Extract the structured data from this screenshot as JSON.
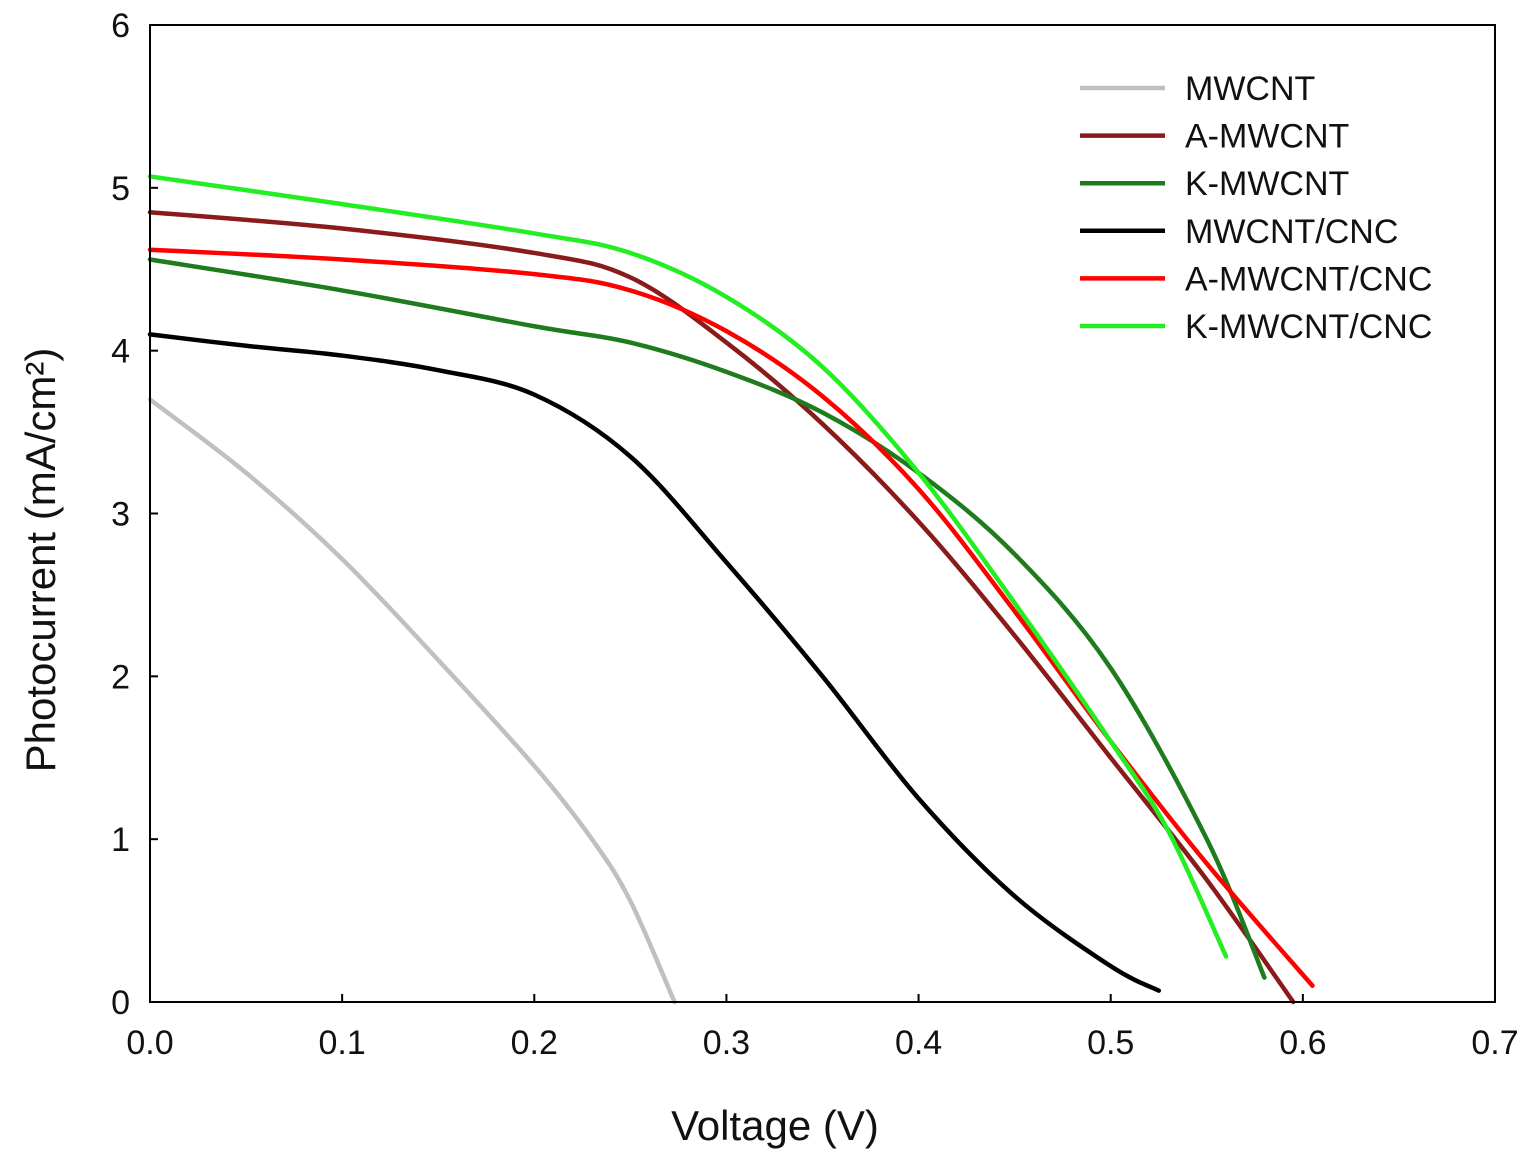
{
  "chart_data": {
    "type": "line",
    "title": "",
    "xlabel": "Voltage (V)",
    "ylabel": "Photocurrent (mA/cm²)",
    "xlim": [
      0,
      0.7
    ],
    "ylim": [
      0,
      6
    ],
    "xticks": [
      "0.0",
      "0.1",
      "0.2",
      "0.3",
      "0.4",
      "0.5",
      "0.6",
      "0.7"
    ],
    "yticks": [
      "0",
      "1",
      "2",
      "3",
      "4",
      "5",
      "6"
    ],
    "grid": false,
    "legend_position": "top-right",
    "series": [
      {
        "name": "MWCNT",
        "color": "#c0c0c0",
        "x": [
          0,
          0.05,
          0.1,
          0.15,
          0.2,
          0.23,
          0.25,
          0.273
        ],
        "y": [
          3.7,
          3.25,
          2.72,
          2.1,
          1.45,
          1.0,
          0.62,
          0
        ]
      },
      {
        "name": "A-MWCNT",
        "color": "#8b1a1a",
        "x": [
          0,
          0.1,
          0.2,
          0.25,
          0.3,
          0.35,
          0.4,
          0.45,
          0.5,
          0.55,
          0.595
        ],
        "y": [
          4.85,
          4.75,
          4.6,
          4.45,
          4.05,
          3.55,
          2.95,
          2.25,
          1.5,
          0.75,
          0
        ]
      },
      {
        "name": "K-MWCNT",
        "color": "#1e7b1e",
        "x": [
          0,
          0.1,
          0.2,
          0.25,
          0.3,
          0.35,
          0.4,
          0.45,
          0.5,
          0.55,
          0.58
        ],
        "y": [
          4.56,
          4.37,
          4.15,
          4.05,
          3.87,
          3.62,
          3.25,
          2.75,
          2.05,
          1.0,
          0.15
        ]
      },
      {
        "name": "MWCNT/CNC",
        "color": "#000000",
        "x": [
          0,
          0.05,
          0.1,
          0.15,
          0.2,
          0.25,
          0.3,
          0.35,
          0.4,
          0.45,
          0.5,
          0.525
        ],
        "y": [
          4.1,
          4.03,
          3.97,
          3.88,
          3.73,
          3.35,
          2.7,
          2.0,
          1.25,
          0.65,
          0.22,
          0.07
        ]
      },
      {
        "name": "A-MWCNT/CNC",
        "color": "#ff0000",
        "x": [
          0,
          0.1,
          0.2,
          0.25,
          0.3,
          0.35,
          0.4,
          0.45,
          0.5,
          0.55,
          0.605
        ],
        "y": [
          4.62,
          4.56,
          4.47,
          4.37,
          4.12,
          3.72,
          3.15,
          2.4,
          1.6,
          0.85,
          0.1
        ]
      },
      {
        "name": "K-MWCNT/CNC",
        "color": "#22ee22",
        "x": [
          0,
          0.1,
          0.2,
          0.25,
          0.3,
          0.35,
          0.4,
          0.45,
          0.5,
          0.53,
          0.56
        ],
        "y": [
          5.07,
          4.9,
          4.72,
          4.6,
          4.33,
          3.9,
          3.25,
          2.45,
          1.6,
          1.05,
          0.28
        ]
      }
    ]
  }
}
